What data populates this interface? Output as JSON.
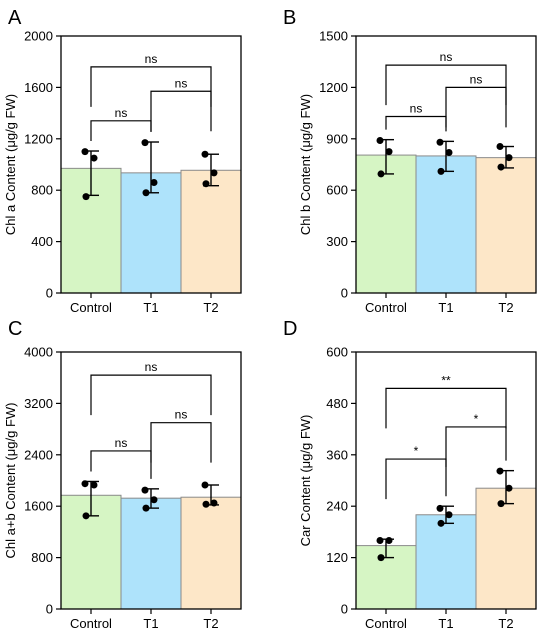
{
  "colors": {
    "control": "#d6f5c4",
    "t1": "#aee3fb",
    "t2": "#fde7c8",
    "bar_stroke": "#8a8a8a",
    "ink": "#000000"
  },
  "chart_data": [
    {
      "panel": "A",
      "type": "bar",
      "ylabel": "Chl a Content (μg/g FW)",
      "categories": [
        "Control",
        "T1",
        "T2"
      ],
      "values": [
        970,
        935,
        955
      ],
      "errors": [
        [
          760,
          1105
        ],
        [
          780,
          1175
        ],
        [
          835,
          1080
        ]
      ],
      "points": [
        [
          1100,
          1050,
          750
        ],
        [
          1170,
          860,
          780
        ],
        [
          1080,
          935,
          850
        ]
      ],
      "ylim": [
        0,
        2000
      ],
      "yticks": [
        0,
        400,
        800,
        1200,
        1600,
        2000
      ],
      "yticklabels": [
        "0",
        "400",
        "800",
        "1200",
        "1600",
        "2000"
      ],
      "comparisons": [
        {
          "from": 0,
          "to": 1,
          "y": 1340,
          "label": "ns"
        },
        {
          "from": 1,
          "to": 2,
          "y": 1570,
          "label": "ns"
        },
        {
          "from": 0,
          "to": 2,
          "y": 1760,
          "label": "ns"
        }
      ]
    },
    {
      "panel": "B",
      "type": "bar",
      "ylabel": "Chl b Content (μg/g FW)",
      "categories": [
        "Control",
        "T1",
        "T2"
      ],
      "values": [
        805,
        800,
        790
      ],
      "errors": [
        [
          695,
          895
        ],
        [
          710,
          885
        ],
        [
          730,
          855
        ]
      ],
      "points": [
        [
          890,
          825,
          695
        ],
        [
          880,
          820,
          710
        ],
        [
          855,
          790,
          735
        ]
      ],
      "ylim": [
        0,
        1500
      ],
      "yticks": [
        0,
        300,
        600,
        900,
        1200,
        1500
      ],
      "yticklabels": [
        "0",
        "300",
        "600",
        "900",
        "1200",
        "1500"
      ],
      "comparisons": [
        {
          "from": 0,
          "to": 1,
          "y": 1030,
          "label": "ns"
        },
        {
          "from": 1,
          "to": 2,
          "y": 1200,
          "label": "ns"
        },
        {
          "from": 0,
          "to": 2,
          "y": 1330,
          "label": "ns"
        }
      ]
    },
    {
      "panel": "C",
      "type": "bar",
      "ylabel": "Chl a+b Content (μg/g FW)",
      "categories": [
        "Control",
        "T1",
        "T2"
      ],
      "values": [
        1770,
        1725,
        1740
      ],
      "errors": [
        [
          1450,
          1985
        ],
        [
          1570,
          1870
        ],
        [
          1620,
          1930
        ]
      ],
      "points": [
        [
          1950,
          1930,
          1450
        ],
        [
          1850,
          1700,
          1570
        ],
        [
          1930,
          1650,
          1630
        ]
      ],
      "ylim": [
        0,
        4000
      ],
      "yticks": [
        0,
        800,
        1600,
        2400,
        3200,
        4000
      ],
      "yticklabels": [
        "0",
        "800",
        "1600",
        "2400",
        "3200",
        "4000"
      ],
      "comparisons": [
        {
          "from": 0,
          "to": 1,
          "y": 2460,
          "label": "ns"
        },
        {
          "from": 1,
          "to": 2,
          "y": 2900,
          "label": "ns"
        },
        {
          "from": 0,
          "to": 2,
          "y": 3640,
          "label": "ns"
        }
      ]
    },
    {
      "panel": "D",
      "type": "bar",
      "ylabel": "Car Content (μg/g FW)",
      "categories": [
        "Control",
        "T1",
        "T2"
      ],
      "values": [
        148,
        220,
        282
      ],
      "errors": [
        [
          120,
          163
        ],
        [
          200,
          240
        ],
        [
          246,
          323
        ]
      ],
      "points": [
        [
          160,
          160,
          120
        ],
        [
          235,
          220,
          200
        ],
        [
          322,
          282,
          246
        ]
      ],
      "ylim": [
        0,
        600
      ],
      "yticks": [
        0,
        120,
        240,
        360,
        480,
        600
      ],
      "yticklabels": [
        "0",
        "120",
        "240",
        "360",
        "480",
        "600"
      ],
      "comparisons": [
        {
          "from": 0,
          "to": 1,
          "y": 350,
          "label": "*"
        },
        {
          "from": 1,
          "to": 2,
          "y": 425,
          "label": "*"
        },
        {
          "from": 0,
          "to": 2,
          "y": 515,
          "label": "**"
        }
      ]
    }
  ]
}
